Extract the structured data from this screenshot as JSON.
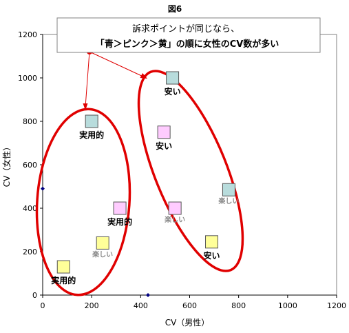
{
  "chart_data": {
    "type": "scatter",
    "title": "図6",
    "xlabel": "CV（男性）",
    "ylabel": "CV（女性）",
    "xlim": [
      0,
      1200
    ],
    "ylim": [
      0,
      1200
    ],
    "xticks": [
      "0",
      "200",
      "400",
      "600",
      "800",
      "1000",
      "1200"
    ],
    "yticks": [
      "0",
      "200",
      "400",
      "600",
      "800",
      "1000",
      "1200"
    ],
    "grid": false,
    "colors": {
      "blue": "#b8dcdc",
      "pink": "#ffccff",
      "yellow": "#ffff99",
      "ellipse": "#e00000",
      "axis_point": "#000080"
    },
    "points": [
      {
        "x": 200,
        "y": 800,
        "color": "blue",
        "label": "実用的",
        "label_style": "bold"
      },
      {
        "x": 315,
        "y": 400,
        "color": "pink",
        "label": "実用的",
        "label_style": "bold"
      },
      {
        "x": 85,
        "y": 130,
        "color": "yellow",
        "label": "実用的",
        "label_style": "bold"
      },
      {
        "x": 245,
        "y": 240,
        "color": "yellow",
        "label": "楽しい",
        "label_style": "faint"
      },
      {
        "x": 530,
        "y": 1000,
        "color": "blue",
        "label": "安い",
        "label_style": "bold"
      },
      {
        "x": 495,
        "y": 750,
        "color": "pink",
        "label": "安い",
        "label_style": "bold"
      },
      {
        "x": 540,
        "y": 400,
        "color": "pink",
        "label": "楽しい",
        "label_style": "faint"
      },
      {
        "x": 760,
        "y": 485,
        "color": "blue",
        "label": "楽しい",
        "label_style": "faint"
      },
      {
        "x": 690,
        "y": 245,
        "color": "yellow",
        "label": "安い",
        "label_style": "bold"
      }
    ],
    "axis_points": [
      {
        "x": 0,
        "y": 490
      },
      {
        "x": 430,
        "y": 0
      }
    ],
    "annotation": {
      "line1": "訴求ポイントが同じなら、",
      "line2": "「青＞ピンク＞黄」の順に女性のCV数が多い"
    }
  }
}
